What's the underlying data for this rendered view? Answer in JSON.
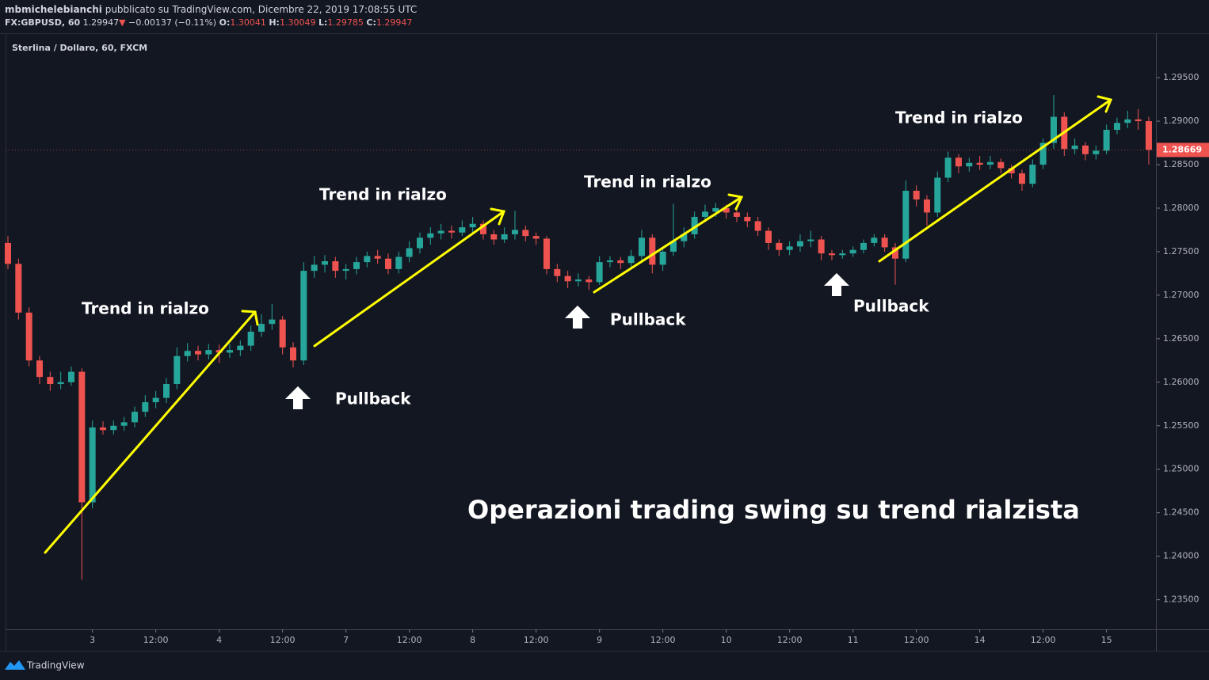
{
  "header": {
    "user": "mbmichelebianchi",
    "published": "pubblicato su TradingView.com, Dicembre 22, 2019 17:08:55 UTC",
    "symbol": "FX:GBPUSD, 60",
    "price": "1.29947",
    "direction": "▼",
    "change": "−0.00137 (−0.11%)",
    "o_label": "O:",
    "o": "1.30041",
    "h_label": "H:",
    "h": "1.30049",
    "l_label": "L:",
    "l": "1.29785",
    "c_label": "C:",
    "c": "1.29947"
  },
  "footer": {
    "brand": "TradingView"
  },
  "chart_data": {
    "type": "candlestick",
    "title": "Sterlina / Dollaro, 60, FXCM",
    "up_color": "#26a69a",
    "down_color": "#ef5350",
    "ylim": [
      1.2316,
      1.3001
    ],
    "yticks": [
      {
        "value": 1.295,
        "label": "1.29500"
      },
      {
        "value": 1.29,
        "label": "1.29000"
      },
      {
        "value": 1.285,
        "label": "1.28500"
      },
      {
        "value": 1.28,
        "label": "1.28000"
      },
      {
        "value": 1.275,
        "label": "1.27500"
      },
      {
        "value": 1.27,
        "label": "1.27000"
      },
      {
        "value": 1.265,
        "label": "1.26500"
      },
      {
        "value": 1.26,
        "label": "1.26000"
      },
      {
        "value": 1.255,
        "label": "1.25500"
      },
      {
        "value": 1.25,
        "label": "1.25000"
      },
      {
        "value": 1.245,
        "label": "1.24500"
      },
      {
        "value": 1.24,
        "label": "1.24000"
      },
      {
        "value": 1.235,
        "label": "1.23500"
      }
    ],
    "xticks": [
      "3",
      "12:00",
      "4",
      "12:00",
      "7",
      "12:00",
      "8",
      "12:00",
      "9",
      "12:00",
      "10",
      "12:00",
      "11",
      "12:00",
      "14",
      "12:00",
      "15"
    ],
    "last_price": 1.28669,
    "annotations": [
      "Trend in rialzo",
      "Trend in rialzo",
      "Trend in rialzo",
      "Trend in rialzo",
      "Pullback",
      "Pullback",
      "Pullback",
      "Operazioni trading swing su trend rialzista"
    ],
    "ohlc": [
      [
        1.276,
        1.2768,
        1.273,
        1.2736
      ],
      [
        1.2736,
        1.2742,
        1.2672,
        1.268
      ],
      [
        1.268,
        1.2686,
        1.2618,
        1.2625
      ],
      [
        1.2625,
        1.263,
        1.2598,
        1.2606
      ],
      [
        1.2606,
        1.2612,
        1.259,
        1.2598
      ],
      [
        1.2598,
        1.2612,
        1.2592,
        1.26
      ],
      [
        1.26,
        1.2618,
        1.2596,
        1.2612
      ],
      [
        1.2612,
        1.2616,
        1.2373,
        1.2462
      ],
      [
        1.2462,
        1.2556,
        1.2455,
        1.2548
      ],
      [
        1.2548,
        1.2555,
        1.254,
        1.2545
      ],
      [
        1.2545,
        1.2556,
        1.254,
        1.255
      ],
      [
        1.255,
        1.256,
        1.2544,
        1.2554
      ],
      [
        1.2554,
        1.2572,
        1.2548,
        1.2566
      ],
      [
        1.2566,
        1.2585,
        1.256,
        1.2577
      ],
      [
        1.2577,
        1.259,
        1.257,
        1.2582
      ],
      [
        1.2582,
        1.2605,
        1.2576,
        1.2598
      ],
      [
        1.2598,
        1.264,
        1.2592,
        1.263
      ],
      [
        1.263,
        1.2645,
        1.2624,
        1.2636
      ],
      [
        1.2636,
        1.2642,
        1.2625,
        1.2632
      ],
      [
        1.2632,
        1.2644,
        1.2626,
        1.2637
      ],
      [
        1.2637,
        1.2643,
        1.2622,
        1.2634
      ],
      [
        1.2634,
        1.2644,
        1.2628,
        1.2637
      ],
      [
        1.2637,
        1.2648,
        1.263,
        1.2642
      ],
      [
        1.2642,
        1.2665,
        1.2636,
        1.2658
      ],
      [
        1.2658,
        1.2678,
        1.2652,
        1.2667
      ],
      [
        1.2667,
        1.269,
        1.266,
        1.2672
      ],
      [
        1.2672,
        1.2676,
        1.2632,
        1.264
      ],
      [
        1.264,
        1.2646,
        1.2617,
        1.2625
      ],
      [
        1.2625,
        1.2738,
        1.262,
        1.2728
      ],
      [
        1.2728,
        1.2745,
        1.272,
        1.2735
      ],
      [
        1.2735,
        1.2746,
        1.2726,
        1.2739
      ],
      [
        1.2739,
        1.2744,
        1.272,
        1.2728
      ],
      [
        1.2728,
        1.2736,
        1.2718,
        1.273
      ],
      [
        1.273,
        1.2744,
        1.2724,
        1.2738
      ],
      [
        1.2738,
        1.275,
        1.2732,
        1.2745
      ],
      [
        1.2745,
        1.2752,
        1.2736,
        1.2742
      ],
      [
        1.2742,
        1.2748,
        1.2724,
        1.273
      ],
      [
        1.273,
        1.275,
        1.2725,
        1.2744
      ],
      [
        1.2744,
        1.2762,
        1.2738,
        1.2754
      ],
      [
        1.2754,
        1.2772,
        1.2748,
        1.2766
      ],
      [
        1.2766,
        1.2778,
        1.2758,
        1.2771
      ],
      [
        1.2771,
        1.2782,
        1.2764,
        1.2774
      ],
      [
        1.2774,
        1.278,
        1.2765,
        1.2772
      ],
      [
        1.2772,
        1.2786,
        1.2768,
        1.2778
      ],
      [
        1.2778,
        1.279,
        1.2772,
        1.2782
      ],
      [
        1.2782,
        1.2786,
        1.2764,
        1.277
      ],
      [
        1.277,
        1.2775,
        1.2758,
        1.2764
      ],
      [
        1.2764,
        1.2778,
        1.276,
        1.277
      ],
      [
        1.277,
        1.2797,
        1.2764,
        1.2775
      ],
      [
        1.2775,
        1.278,
        1.2762,
        1.2768
      ],
      [
        1.2768,
        1.2772,
        1.2758,
        1.2765
      ],
      [
        1.2765,
        1.2768,
        1.2724,
        1.273
      ],
      [
        1.273,
        1.2736,
        1.2715,
        1.2722
      ],
      [
        1.2722,
        1.2728,
        1.2708,
        1.2716
      ],
      [
        1.2716,
        1.2725,
        1.271,
        1.2718
      ],
      [
        1.2718,
        1.2722,
        1.2706,
        1.2715
      ],
      [
        1.2715,
        1.2745,
        1.2712,
        1.2738
      ],
      [
        1.2738,
        1.2745,
        1.2732,
        1.274
      ],
      [
        1.274,
        1.2744,
        1.273,
        1.2737
      ],
      [
        1.2737,
        1.2752,
        1.2732,
        1.2745
      ],
      [
        1.2745,
        1.2775,
        1.274,
        1.2766
      ],
      [
        1.2766,
        1.277,
        1.2725,
        1.2735
      ],
      [
        1.2735,
        1.2756,
        1.2728,
        1.275
      ],
      [
        1.275,
        1.2805,
        1.2745,
        1.2762
      ],
      [
        1.2762,
        1.2778,
        1.2755,
        1.277
      ],
      [
        1.277,
        1.2796,
        1.2765,
        1.279
      ],
      [
        1.279,
        1.2804,
        1.2784,
        1.2796
      ],
      [
        1.2796,
        1.2806,
        1.279,
        1.28
      ],
      [
        1.28,
        1.2804,
        1.2788,
        1.2795
      ],
      [
        1.2795,
        1.28,
        1.2784,
        1.279
      ],
      [
        1.279,
        1.2795,
        1.2778,
        1.2785
      ],
      [
        1.2785,
        1.279,
        1.2768,
        1.2774
      ],
      [
        1.2774,
        1.2778,
        1.2752,
        1.276
      ],
      [
        1.276,
        1.2764,
        1.2745,
        1.2752
      ],
      [
        1.2752,
        1.2762,
        1.2746,
        1.2756
      ],
      [
        1.2756,
        1.277,
        1.275,
        1.2762
      ],
      [
        1.2762,
        1.2774,
        1.2755,
        1.2764
      ],
      [
        1.2764,
        1.2768,
        1.274,
        1.2748
      ],
      [
        1.2748,
        1.2752,
        1.274,
        1.2746
      ],
      [
        1.2746,
        1.2752,
        1.2742,
        1.2748
      ],
      [
        1.2748,
        1.2756,
        1.2744,
        1.2752
      ],
      [
        1.2752,
        1.2764,
        1.2748,
        1.276
      ],
      [
        1.276,
        1.277,
        1.2756,
        1.2766
      ],
      [
        1.2766,
        1.277,
        1.275,
        1.2755
      ],
      [
        1.2755,
        1.276,
        1.2712,
        1.2742
      ],
      [
        1.2742,
        1.2832,
        1.2738,
        1.282
      ],
      [
        1.282,
        1.2826,
        1.2802,
        1.281
      ],
      [
        1.281,
        1.2815,
        1.278,
        1.2795
      ],
      [
        1.2795,
        1.2842,
        1.279,
        1.2835
      ],
      [
        1.2835,
        1.2865,
        1.283,
        1.2858
      ],
      [
        1.2858,
        1.2862,
        1.284,
        1.2848
      ],
      [
        1.2848,
        1.2858,
        1.2842,
        1.2852
      ],
      [
        1.2852,
        1.286,
        1.2844,
        1.285
      ],
      [
        1.285,
        1.286,
        1.2845,
        1.2853
      ],
      [
        1.2853,
        1.2857,
        1.284,
        1.2846
      ],
      [
        1.2846,
        1.285,
        1.2834,
        1.284
      ],
      [
        1.284,
        1.2844,
        1.282,
        1.2828
      ],
      [
        1.2828,
        1.2856,
        1.2824,
        1.285
      ],
      [
        1.285,
        1.288,
        1.2845,
        1.2875
      ],
      [
        1.2875,
        1.293,
        1.2868,
        1.2905
      ],
      [
        1.2905,
        1.291,
        1.286,
        1.2868
      ],
      [
        1.2868,
        1.288,
        1.2862,
        1.2872
      ],
      [
        1.2872,
        1.2876,
        1.2855,
        1.2862
      ],
      [
        1.2862,
        1.2872,
        1.2856,
        1.2866
      ],
      [
        1.2866,
        1.2896,
        1.2862,
        1.289
      ],
      [
        1.289,
        1.2904,
        1.2885,
        1.2898
      ],
      [
        1.2898,
        1.2912,
        1.2892,
        1.2902
      ],
      [
        1.2902,
        1.2914,
        1.289,
        1.29
      ],
      [
        1.29,
        1.2905,
        1.285,
        1.2867
      ]
    ]
  }
}
